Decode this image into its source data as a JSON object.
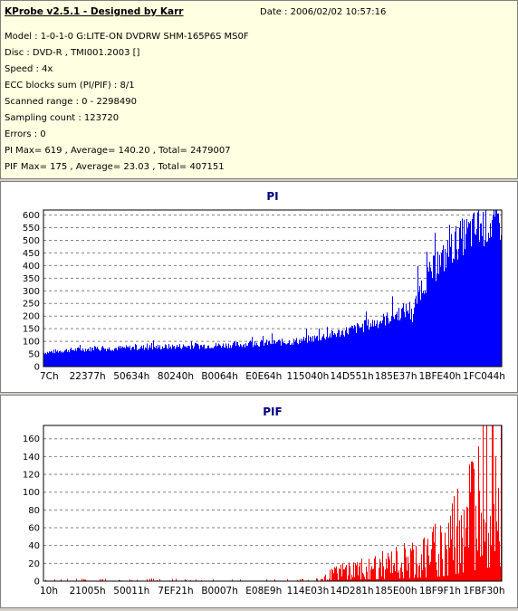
{
  "header": {
    "title": "KProbe v2.5.1 - Designed by Karr",
    "date": "Date : 2006/02/02 10:57:16",
    "lines": [
      "Model : 1-0-1-0 G:LITE-ON DVDRW SHM-165P6S MS0F",
      "Disc : DVD-R , TMI001.2003 []",
      "Speed : 4x",
      "ECC blocks sum (PI/PIF) : 8/1",
      "Scanned range : 0 - 2298490",
      "Sampling count : 123720",
      "Errors : 0",
      "PI Max= 619 , Average= 140.20 , Total= 2479007",
      "PIF Max= 175 , Average= 23.03 , Total= 407151"
    ]
  },
  "chart_data": [
    {
      "type": "bar",
      "title": "PI",
      "color": "#0000ff",
      "ylim": [
        0,
        620
      ],
      "yticks": [
        0,
        50,
        100,
        150,
        200,
        250,
        300,
        350,
        400,
        450,
        500,
        550,
        600
      ],
      "xticks": [
        "7Ch",
        "22377h",
        "50634h",
        "80240h",
        "B0064h",
        "E0E64h",
        "115040h",
        "14D551h",
        "185E37h",
        "1BFE40h",
        "1FC044h"
      ],
      "grid": true,
      "profile": {
        "x": [
          0,
          0.05,
          0.1,
          0.2,
          0.3,
          0.4,
          0.5,
          0.55,
          0.6,
          0.65,
          0.7,
          0.75,
          0.78,
          0.8,
          0.805,
          0.81,
          0.82,
          0.85,
          0.88,
          0.9,
          0.92,
          0.94,
          0.96,
          0.98,
          1.0
        ],
        "y": [
          55,
          65,
          70,
          75,
          80,
          85,
          95,
          100,
          115,
          135,
          160,
          190,
          215,
          230,
          180,
          230,
          300,
          380,
          440,
          490,
          520,
          540,
          555,
          565,
          575
        ]
      }
    },
    {
      "type": "bar",
      "title": "PIF",
      "color": "#ff0000",
      "ylim": [
        0,
        175
      ],
      "yticks": [
        0,
        20,
        40,
        60,
        80,
        100,
        120,
        140,
        160
      ],
      "xticks": [
        "10h",
        "21005h",
        "50011h",
        "7EF21h",
        "B0007h",
        "E08E9h",
        "114E03h",
        "14D281h",
        "185E00h",
        "1BF9F1h",
        "1FBF30h"
      ],
      "grid": true,
      "profile": {
        "x": [
          0,
          0.3,
          0.6,
          0.62,
          0.65,
          0.7,
          0.75,
          0.8,
          0.85,
          0.88,
          0.9,
          0.93,
          0.96,
          0.98,
          1.0
        ],
        "y": [
          0,
          0,
          0,
          8,
          15,
          20,
          25,
          35,
          45,
          60,
          80,
          110,
          140,
          160,
          168
        ]
      }
    }
  ]
}
